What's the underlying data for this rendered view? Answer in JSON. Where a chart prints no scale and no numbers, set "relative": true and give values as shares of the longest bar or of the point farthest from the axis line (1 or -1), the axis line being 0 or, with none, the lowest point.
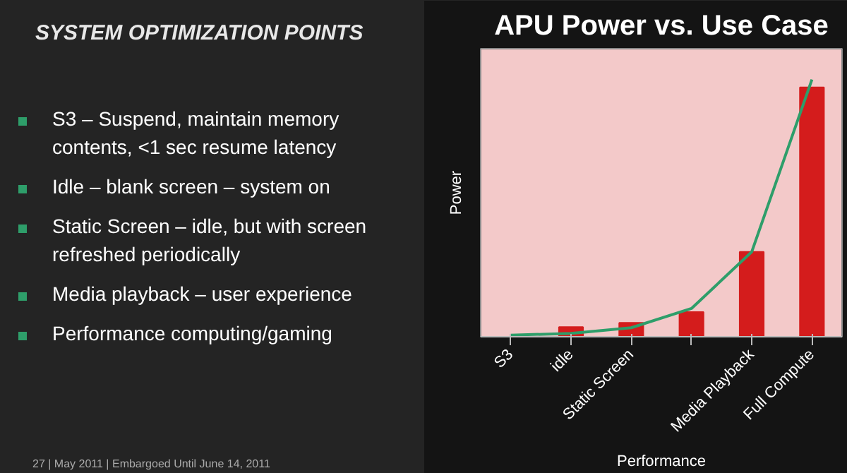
{
  "chart_data": {
    "type": "bar",
    "title": "APU Power vs. Use Case",
    "xlabel": "Performance",
    "ylabel": "Power",
    "relative": true,
    "categories": [
      "S3",
      "idle",
      "Static Screen",
      null,
      "Media Playback",
      "Full Compute"
    ],
    "series": [
      {
        "color": "#d41c1c",
        "values": [
          0,
          0.038,
          0.054,
          0.096,
          0.33,
          0.97
        ]
      },
      {
        "type": "line",
        "color": "#2e9e6a",
        "values": [
          0.006,
          0.013,
          0.035,
          0.11,
          0.33,
          1
        ]
      }
    ],
    "annotations": [
      "SYSTEM OPTIMIZATION POINTS",
      "S3 – Suspend, maintain memory contents,  <1 sec resume latency",
      "Idle – blank screen – system on",
      "Static Screen – idle, but with screen refreshed periodically",
      "Media playback – user experience",
      "Performance computing/gaming",
      "27 | May 2011 | Embargoed Until June 14, 2011"
    ]
  }
}
